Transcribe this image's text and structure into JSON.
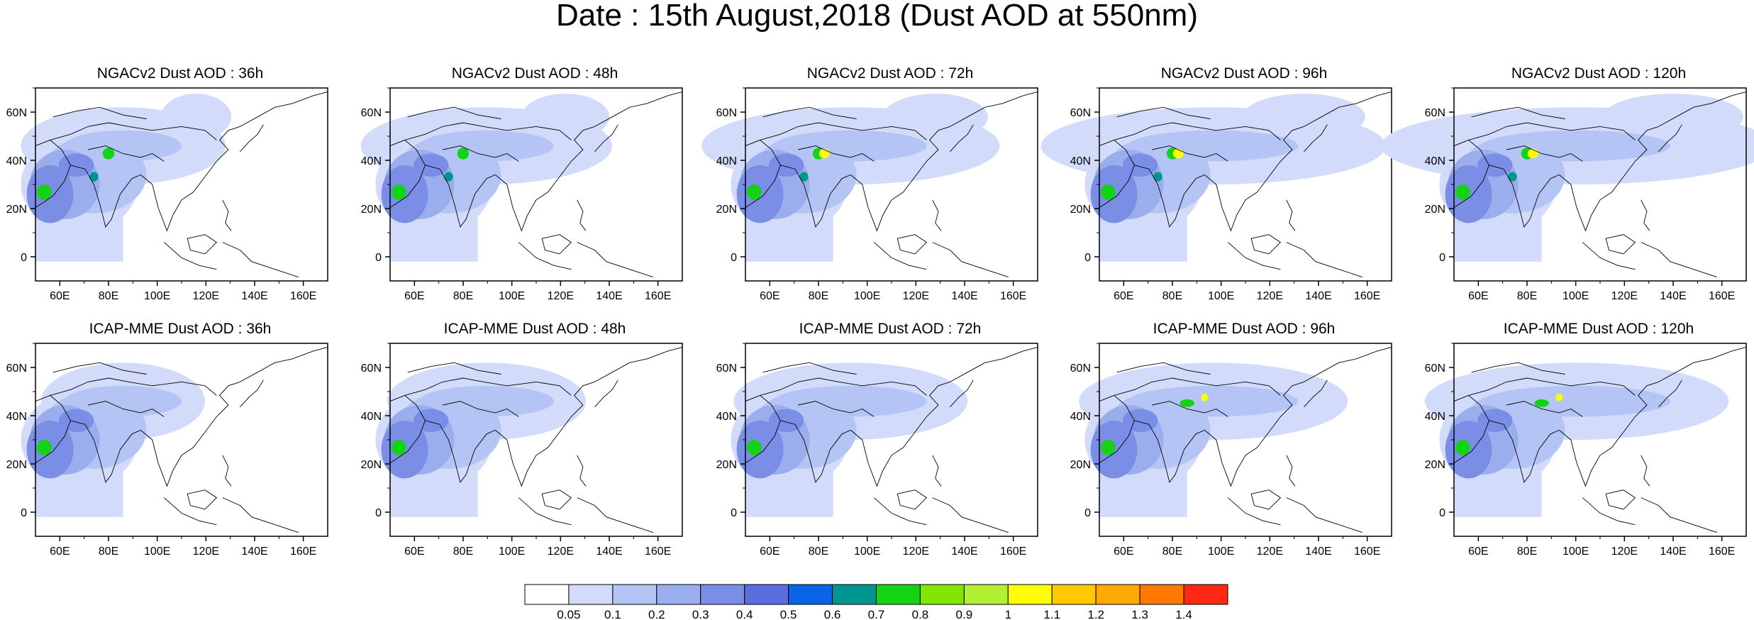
{
  "title": "Date : 15th August,2018 (Dust AOD at 550nm)",
  "lat_ticks": [
    "0",
    "20N",
    "40N",
    "60N"
  ],
  "lon_ticks": [
    "60E",
    "80E",
    "100E",
    "120E",
    "140E",
    "160E"
  ],
  "panels": [
    {
      "title": "NGACv2 Dust AOD : 36h"
    },
    {
      "title": "NGACv2 Dust AOD : 48h"
    },
    {
      "title": "NGACv2 Dust AOD : 72h"
    },
    {
      "title": "NGACv2 Dust AOD : 96h"
    },
    {
      "title": "NGACv2 Dust AOD : 120h"
    },
    {
      "title": "ICAP-MME Dust AOD : 36h"
    },
    {
      "title": "ICAP-MME Dust AOD : 48h"
    },
    {
      "title": "ICAP-MME Dust AOD : 72h"
    },
    {
      "title": "ICAP-MME Dust AOD : 96h"
    },
    {
      "title": "ICAP-MME Dust AOD : 120h"
    }
  ],
  "colorbar": {
    "labels": [
      "0.05",
      "0.1",
      "0.2",
      "0.3",
      "0.4",
      "0.5",
      "0.6",
      "0.7",
      "0.8",
      "0.9",
      "1",
      "1.1",
      "1.2",
      "1.3",
      "1.4"
    ],
    "colors": [
      "#ffffff",
      "#d2dcfa",
      "#b4c4f4",
      "#9aaeee",
      "#7a8ee6",
      "#5a6ede",
      "#0a64e6",
      "#009690",
      "#14d214",
      "#82e600",
      "#b4f032",
      "#ffff00",
      "#ffc800",
      "#ffaa00",
      "#ff7800",
      "#ff2814"
    ]
  }
}
